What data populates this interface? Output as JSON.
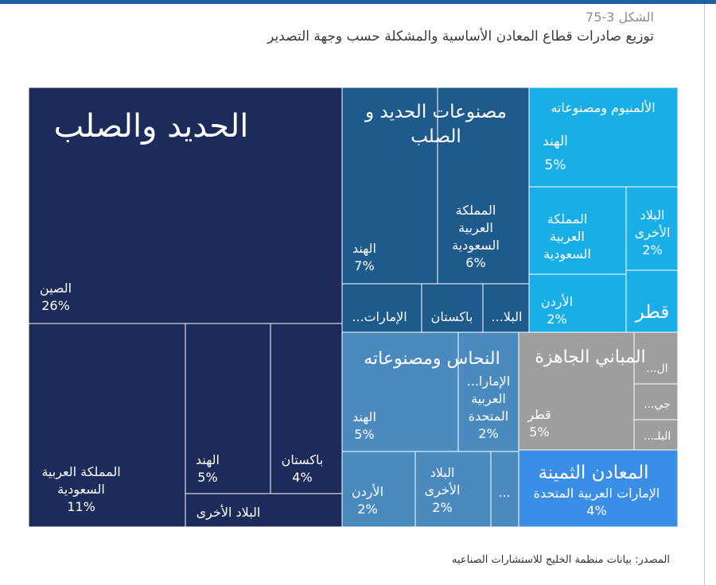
{
  "figure": {
    "number": "الشكل 3-75",
    "title": "توزيع صادرات قطاع المعادن الأساسية والمشكلة حسب وجهة التصدير",
    "source": "المصدر: بيانات منظمة الخليج للاستشارات الصناعيه"
  },
  "chart_data": {
    "type": "treemap",
    "groups": [
      {
        "name": "الحديد والصلب",
        "color": "#1c2b5a",
        "items": [
          {
            "name": "الصين",
            "value": "26%"
          },
          {
            "name": "المملكة العربية السعودية",
            "value": "11%"
          },
          {
            "name": "الهند",
            "value": "5%"
          },
          {
            "name": "باكستان",
            "value": "4%"
          },
          {
            "name": "البلاد الأخرى",
            "value": ""
          }
        ]
      },
      {
        "name": "مصنوعات الحديد و الصلب",
        "color": "#1f5a8c",
        "items": [
          {
            "name": "الهند",
            "value": "7%"
          },
          {
            "name": "المملكة العربية السعودية",
            "value": "6%"
          },
          {
            "name": "الإمارات...",
            "value": ""
          },
          {
            "name": "باكستان",
            "value": ""
          },
          {
            "name": "البلا...",
            "value": ""
          }
        ]
      },
      {
        "name": "الألمنيوم ومصنوعاته",
        "color": "#19aee5",
        "items": [
          {
            "name": "الهند",
            "value": "5%"
          },
          {
            "name": "المملكة العربية السعودية",
            "value": ""
          },
          {
            "name": "البلاد الأخرى",
            "value": "2%"
          },
          {
            "name": "الأردن",
            "value": "2%"
          },
          {
            "name": "قطر",
            "value": ""
          }
        ]
      },
      {
        "name": "النحاس ومصنوعاته",
        "color": "#4a8abf",
        "items": [
          {
            "name": "الهند",
            "value": "5%"
          },
          {
            "name": "الإمارا... العربية المتحدة",
            "value": "2%"
          },
          {
            "name": "الأردن",
            "value": "2%"
          },
          {
            "name": "البلاد الأخرى",
            "value": "2%"
          },
          {
            "name": "...",
            "value": ""
          }
        ]
      },
      {
        "name": "المباني الجاهزة",
        "color": "#9e9e9e",
        "items": [
          {
            "name": "قطر",
            "value": "5%"
          },
          {
            "name": "ال...",
            "value": ""
          },
          {
            "name": "جي...",
            "value": ""
          },
          {
            "name": "البلـ...",
            "value": ""
          }
        ]
      },
      {
        "name": "المعادن الثمينة",
        "color": "#3a8ee6",
        "items": [
          {
            "name": "الإمارات العربية المتحدة",
            "value": "4%"
          }
        ]
      }
    ]
  }
}
